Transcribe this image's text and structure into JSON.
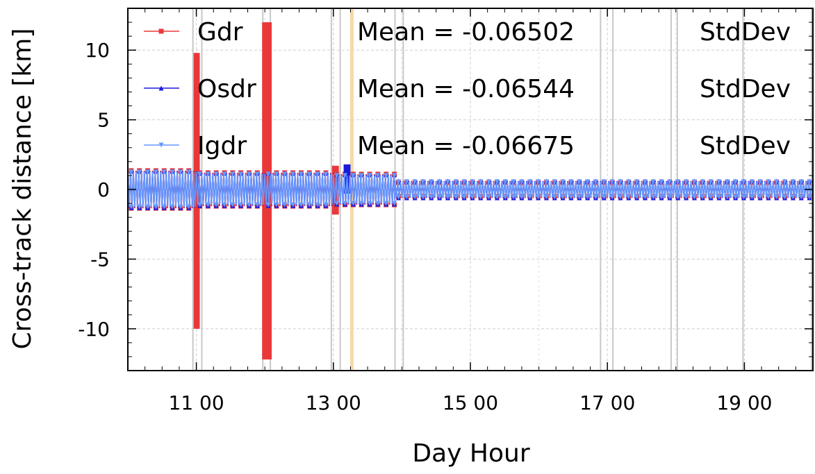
{
  "chart_data": {
    "type": "line",
    "title": "",
    "xlabel": "Day Hour",
    "ylabel": "Cross-track distance [km]",
    "xlim": [
      10.0,
      20.0
    ],
    "ylim": [
      -13,
      13
    ],
    "x_ticks": [
      11,
      13,
      15,
      17,
      19
    ],
    "x_tick_labels": [
      "11 00",
      "13 00",
      "15 00",
      "17 00",
      "19 00"
    ],
    "y_ticks": [
      -10,
      -5,
      0,
      5,
      10
    ],
    "y_tick_labels": [
      "-10",
      "-5",
      "0",
      "5",
      "10"
    ],
    "grid": true,
    "legend_position": "top-left",
    "legend": [
      {
        "name": "Gdr",
        "mean_text": "Mean = -0.06502",
        "std_text": "StdDev"
      },
      {
        "name": "Osdr",
        "mean_text": "Mean = -0.06544",
        "std_text": "StdDev"
      },
      {
        "name": "Igdr",
        "mean_text": "Mean = -0.06675",
        "std_text": "StdDev"
      }
    ],
    "series": [
      {
        "name": "Gdr",
        "color": "#e8383a",
        "marker": "square",
        "band_segments": [
          {
            "x0": 10.0,
            "x1": 11.0,
            "amp": 1.35
          },
          {
            "x0": 11.0,
            "x1": 12.0,
            "amp": 1.2
          },
          {
            "x0": 12.0,
            "x1": 13.0,
            "amp": 1.2
          },
          {
            "x0": 13.0,
            "x1": 13.9,
            "amp": 1.1
          },
          {
            "x0": 13.9,
            "x1": 20.0,
            "amp": 0.5
          }
        ],
        "spikes": [
          {
            "x0": 10.96,
            "x1": 11.05,
            "ymin": -10.0,
            "ymax": 9.8
          },
          {
            "x0": 11.96,
            "x1": 12.1,
            "ymin": -12.2,
            "ymax": 12.0
          },
          {
            "x0": 12.98,
            "x1": 13.08,
            "ymin": -1.8,
            "ymax": 1.7
          }
        ]
      },
      {
        "name": "Osdr",
        "color": "#1a1adc",
        "marker": "triangle-up",
        "band_segments": [
          {
            "x0": 10.0,
            "x1": 11.0,
            "amp": 1.3
          },
          {
            "x0": 11.0,
            "x1": 12.0,
            "amp": 1.15
          },
          {
            "x0": 12.0,
            "x1": 13.0,
            "amp": 1.15
          },
          {
            "x0": 13.0,
            "x1": 13.9,
            "amp": 1.05
          },
          {
            "x0": 13.9,
            "x1": 20.0,
            "amp": 0.6
          }
        ],
        "spikes": [
          {
            "x0": 13.15,
            "x1": 13.25,
            "ymin": -0.3,
            "ymax": 1.8
          }
        ]
      },
      {
        "name": "Igdr",
        "color": "#6699ff",
        "marker": "triangle-down",
        "band_segments": [
          {
            "x0": 10.0,
            "x1": 11.0,
            "amp": 1.25
          },
          {
            "x0": 11.0,
            "x1": 12.0,
            "amp": 1.1
          },
          {
            "x0": 12.0,
            "x1": 13.0,
            "amp": 1.1
          },
          {
            "x0": 13.0,
            "x1": 13.9,
            "amp": 1.0
          },
          {
            "x0": 13.9,
            "x1": 20.0,
            "amp": 0.55
          }
        ],
        "spikes": []
      }
    ],
    "vertical_markers": [
      {
        "x": 10.95,
        "color": "#c8c8c8"
      },
      {
        "x": 11.08,
        "color": "#c8c8c8"
      },
      {
        "x": 11.97,
        "color": "#c8c8c8"
      },
      {
        "x": 12.08,
        "color": "#c8c8c8"
      },
      {
        "x": 12.97,
        "color": "#c8c8c8"
      },
      {
        "x": 13.1,
        "color": "#c8c8c8"
      },
      {
        "x": 13.9,
        "color": "#c8c8c8"
      },
      {
        "x": 14.02,
        "color": "#c8c8c8"
      },
      {
        "x": 16.9,
        "color": "#c8c8c8"
      },
      {
        "x": 17.08,
        "color": "#c8c8c8"
      },
      {
        "x": 17.93,
        "color": "#c8c8c8"
      },
      {
        "x": 18.02,
        "color": "#c8c8c8"
      },
      {
        "x": 18.98,
        "color": "#c8c8c8"
      },
      {
        "x": 19.98,
        "color": "#c8c8c8"
      },
      {
        "x": 13.27,
        "color": "#f5d9a6"
      }
    ]
  }
}
